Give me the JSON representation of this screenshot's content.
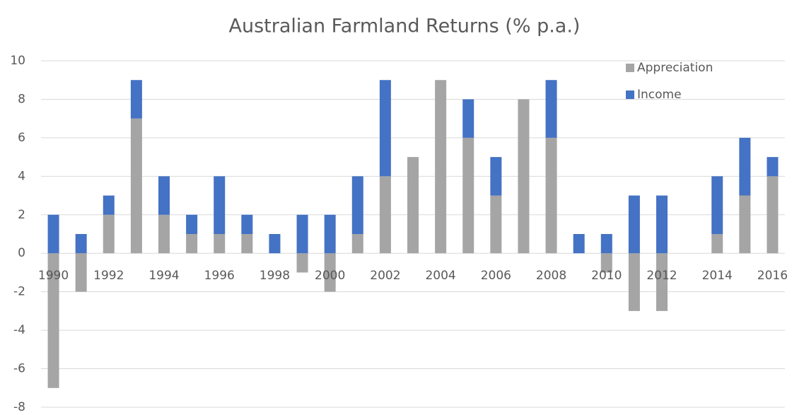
{
  "chart_data": {
    "type": "bar",
    "stacked": true,
    "title": "Australian Farmland Returns (% p.a.)",
    "categories": [
      "1990",
      null,
      "1992",
      null,
      "1994",
      null,
      "1996",
      null,
      "1998",
      null,
      "2000",
      null,
      "2002",
      null,
      "2004",
      null,
      "2006",
      null,
      "2008",
      null,
      "2010",
      null,
      "2012",
      null,
      "2014",
      null,
      "2016"
    ],
    "series": [
      {
        "name": "Appreciation",
        "color": "#a5a5a5",
        "values": [
          -7,
          -2,
          2,
          7,
          2,
          1,
          1,
          1,
          0,
          -1,
          -2,
          1,
          4,
          5,
          9,
          6,
          3,
          8,
          6,
          0,
          -1,
          -3,
          -3,
          0,
          1,
          3,
          4
        ]
      },
      {
        "name": "Income",
        "color": "#4472c4",
        "values": [
          2,
          1,
          1,
          2,
          2,
          1,
          3,
          1,
          1,
          2,
          2,
          3,
          5,
          0,
          0,
          2,
          2,
          0,
          3,
          1,
          1,
          3,
          3,
          0,
          3,
          3,
          1
        ]
      }
    ],
    "ylim": [
      -8,
      10
    ],
    "yticks": [
      -8,
      -6,
      -4,
      -2,
      0,
      2,
      4,
      6,
      8,
      10
    ],
    "grid": true,
    "legend": "top-right"
  }
}
